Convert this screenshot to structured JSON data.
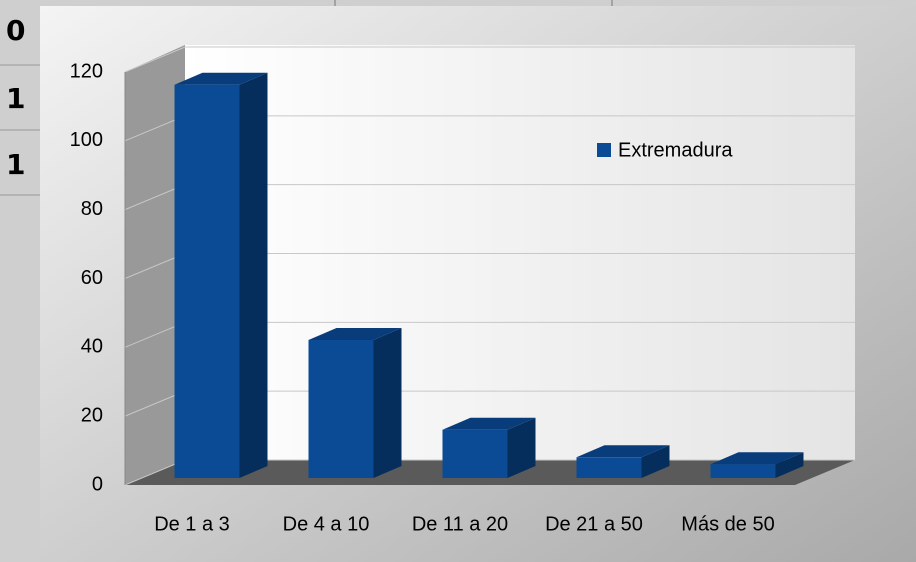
{
  "table": {
    "cells": [
      "0",
      "1",
      "1"
    ]
  },
  "chart_data": {
    "type": "bar3d",
    "categories": [
      "De 1 a 3",
      "De 4 a 10",
      "De 11 a 20",
      "De 21 a 50",
      "Más de 50"
    ],
    "series": [
      {
        "name": "Extremadura",
        "color": "#0b4a94",
        "values": [
          114,
          40,
          14,
          6,
          4
        ]
      }
    ],
    "ylim": [
      0,
      120
    ],
    "yticks": [
      0,
      20,
      40,
      60,
      80,
      100,
      120
    ],
    "grid": true,
    "legend": "top-right"
  }
}
